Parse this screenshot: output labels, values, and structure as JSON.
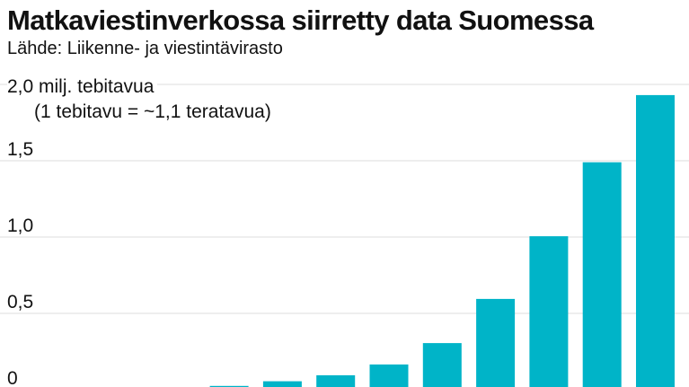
{
  "title": "Matkaviestinverkossa siirretty data Suomessa",
  "source": "Lähde: Liikenne- ja viestintävirasto",
  "colors": {
    "bar": "#00b4c8",
    "grid": "#dddddd"
  },
  "chart_data": {
    "type": "bar",
    "title": "Matkaviestinverkossa siirretty data Suomessa",
    "subtitle": "Lähde: Liikenne- ja viestintävirasto",
    "ylabel": "milj. tebitavua",
    "unit_note": "(1 tebitavu = ~1,1 teratavua)",
    "ylim": [
      0,
      2.0
    ],
    "y_ticks": [
      0,
      0.5,
      1.0,
      1.5,
      2.0
    ],
    "y_tick_labels": [
      "0",
      "0,5",
      "1,0",
      "1,5",
      "2,0"
    ],
    "top_tick_label": "2,0 milj. tebitavua",
    "grid": true,
    "values": [
      0.005,
      0.01,
      0.025,
      0.055,
      0.095,
      0.165,
      0.305,
      0.595,
      1.005,
      1.49,
      1.93
    ]
  }
}
